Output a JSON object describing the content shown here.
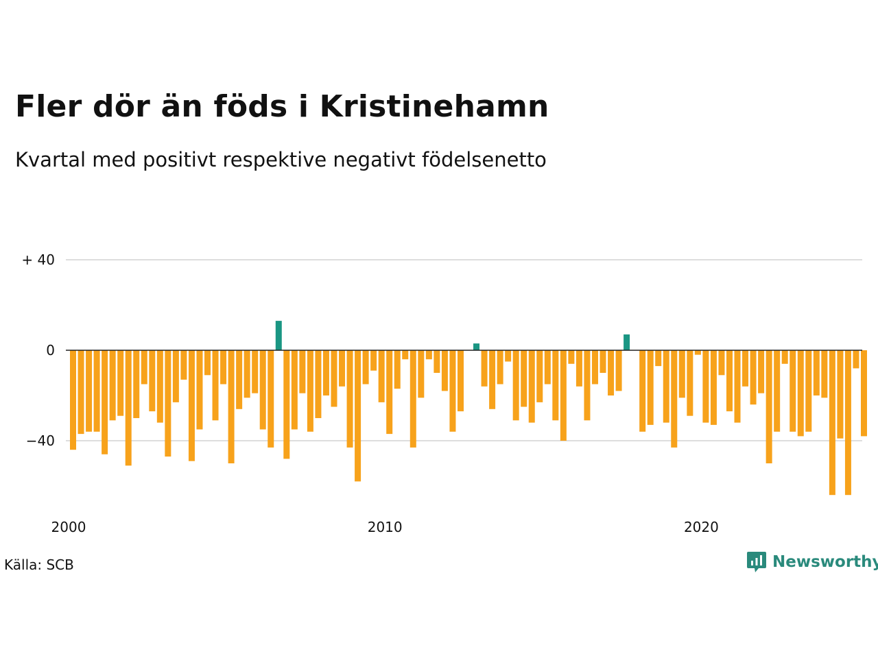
{
  "title": "Fler dör än föds i Kristinehamn",
  "subtitle": "Kvartal med positivt respektive negativt födelsenetto",
  "source": "Källa: SCB",
  "brand": {
    "name": "Newsworthy",
    "icon": "newsworthy-logo-icon"
  },
  "colors": {
    "positive": "#1a9683",
    "negative": "#f7a21b",
    "grid": "#dddddd",
    "zero_line": "#222222",
    "brand": "#2a8a7c"
  },
  "chart_data": {
    "type": "bar",
    "xlabel": "",
    "ylabel": "",
    "x_start": "2000 Q1",
    "x_ticks": [
      {
        "year": 2000,
        "label": "2000"
      },
      {
        "year": 2010,
        "label": "2010"
      },
      {
        "year": 2020,
        "label": "2020"
      }
    ],
    "y_ticks": [
      {
        "value": 40,
        "label": "+ 40"
      },
      {
        "value": 0,
        "label": "0"
      },
      {
        "value": -40,
        "label": "−40"
      }
    ],
    "ylim": [
      -70,
      45
    ],
    "grid": true,
    "legend": "none",
    "values": [
      -44,
      -37,
      -36,
      -36,
      -46,
      -31,
      -29,
      -51,
      -30,
      -15,
      -27,
      -32,
      -47,
      -23,
      -13,
      -49,
      -35,
      -11,
      -31,
      -15,
      -50,
      -26,
      -21,
      -19,
      -35,
      -43,
      13,
      -48,
      -35,
      -19,
      -36,
      -30,
      -20,
      -25,
      -16,
      -43,
      -58,
      -15,
      -9,
      -23,
      -37,
      -17,
      -4,
      -43,
      -21,
      -4,
      -10,
      -18,
      -36,
      -27,
      0,
      3,
      -16,
      -26,
      -15,
      -5,
      -31,
      -25,
      -32,
      -23,
      -15,
      -31,
      -40,
      -6,
      -16,
      -31,
      -15,
      -10,
      -20,
      -18,
      7,
      0,
      -36,
      -33,
      -7,
      -32,
      -43,
      -21,
      -29,
      -2,
      -32,
      -33,
      -11,
      -27,
      -32,
      -16,
      -24,
      -19,
      -50,
      -36,
      -6,
      -36,
      -38,
      -36,
      -20,
      -21,
      -64,
      -39,
      -64,
      -8,
      -38
    ]
  }
}
